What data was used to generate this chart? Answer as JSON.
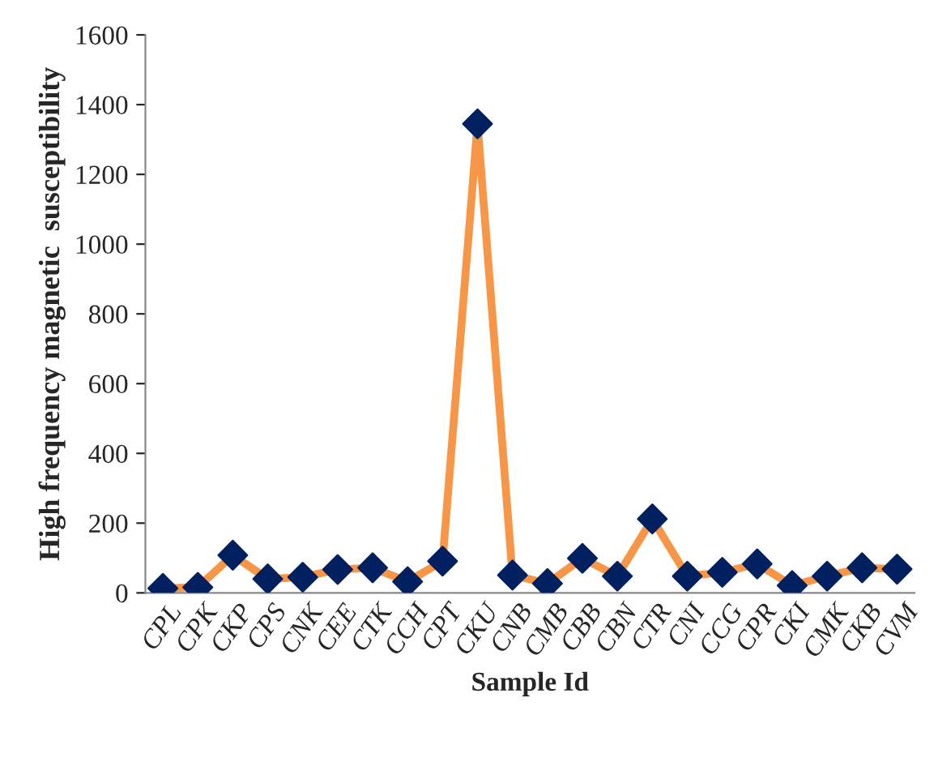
{
  "chart_data": {
    "type": "line",
    "xlabel": "Sample Id",
    "ylabel": "High frequency magnetic  susceptibility",
    "categories": [
      "CPL",
      "CPK",
      "CKP",
      "CPS",
      "CNK",
      "CEE",
      "CTK",
      "CCH",
      "CPT",
      "CKU",
      "CNB",
      "CMB",
      "CBB",
      "CBN",
      "CTR",
      "CNI",
      "CCG",
      "CPR",
      "CKI",
      "CMK",
      "CKB",
      "CVM"
    ],
    "series": [
      {
        "color": "#f79646",
        "colors": [
          "#002060",
          "#002060",
          "#002060",
          "#002060",
          "#002060",
          "#002060",
          "#002060",
          "#002060",
          "#002060",
          "#002060",
          "#002060",
          "#002060",
          "#002060",
          "#002060",
          "#002060",
          "#002060",
          "#002060",
          "#002060",
          "#002060",
          "#002060",
          "#002060",
          "#002060"
        ],
        "values": [
          13,
          16,
          108,
          40,
          45,
          67,
          72,
          32,
          91,
          1345,
          51,
          27,
          99,
          48,
          212,
          48,
          59,
          83,
          21,
          48,
          72,
          68
        ]
      }
    ],
    "ylim": [
      0,
      1600
    ],
    "yticks": [
      0,
      200,
      400,
      600,
      800,
      1000,
      1200,
      1400,
      1600
    ],
    "grid": false,
    "legend": false,
    "marker": "diamond",
    "line_style": "solid"
  }
}
